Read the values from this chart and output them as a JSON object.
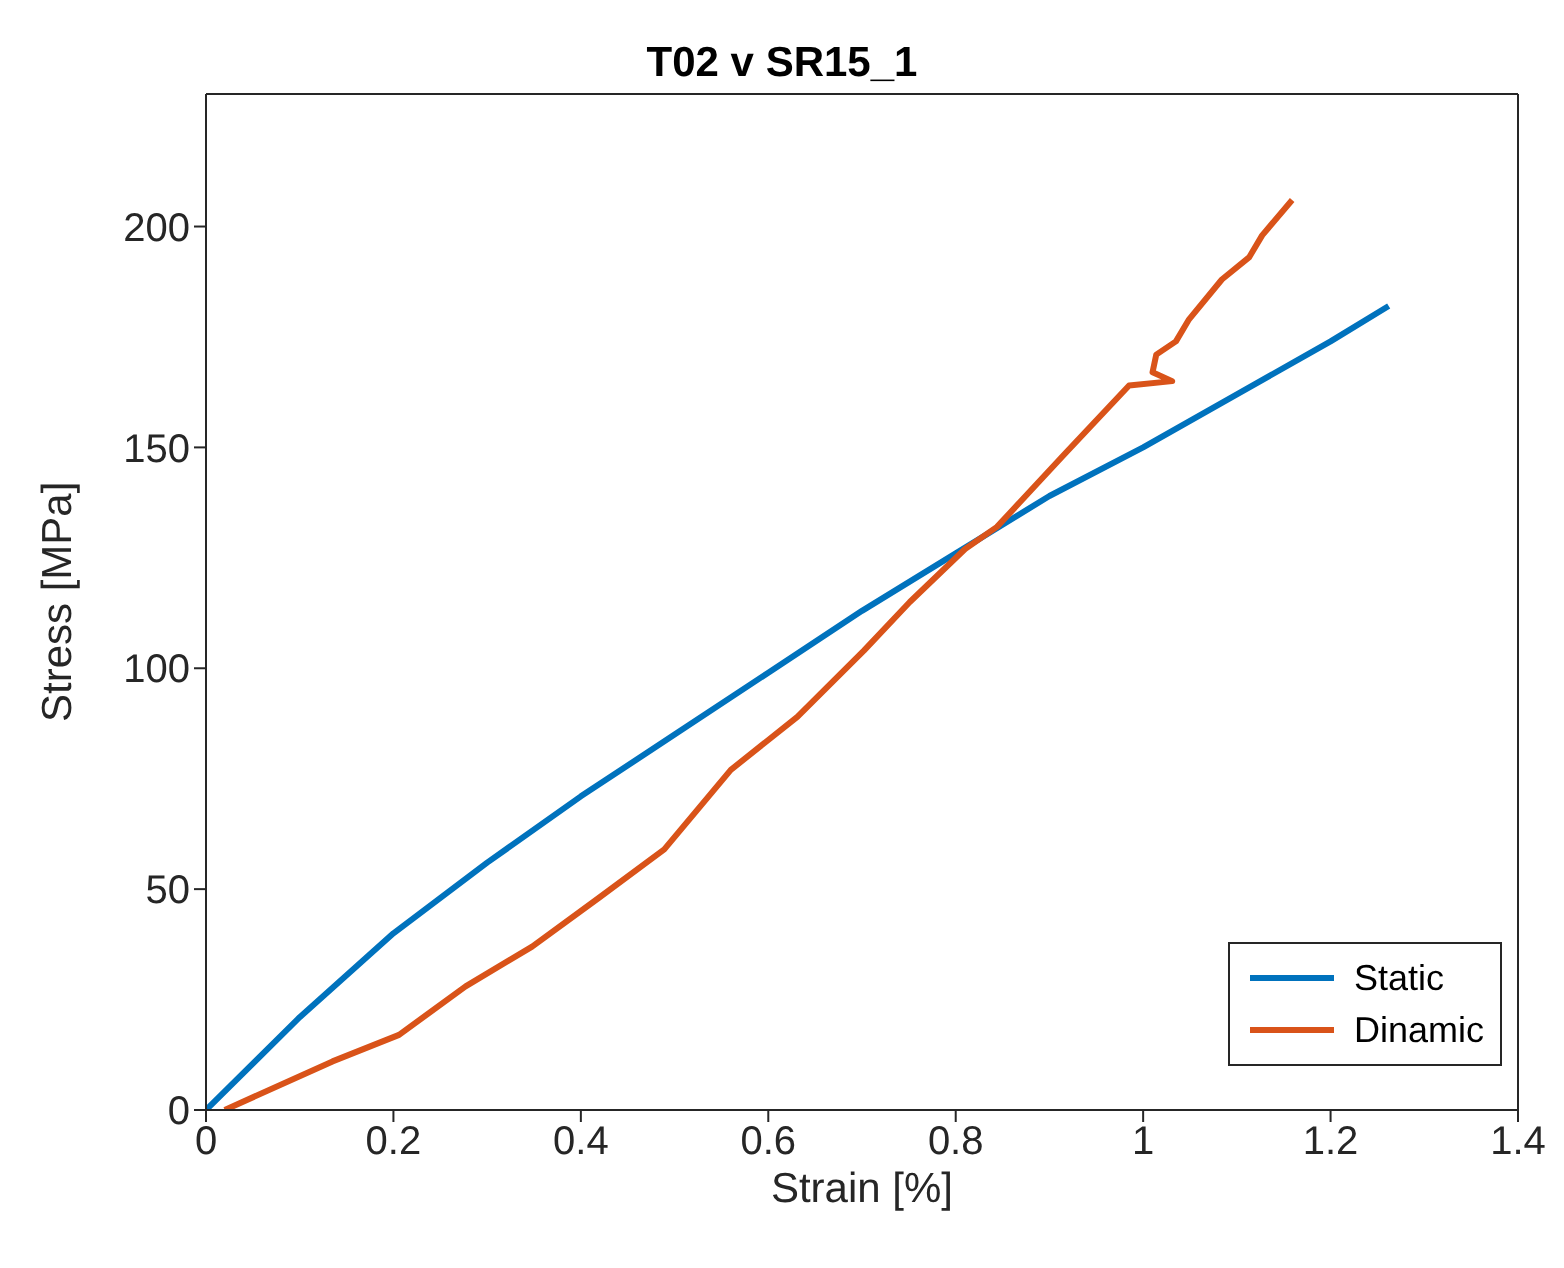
{
  "chart_data": {
    "type": "line",
    "title": "T02 v SR15_1",
    "xlabel": "Strain [%]",
    "ylabel": "Stress [MPa]",
    "xlim": [
      0,
      1.4
    ],
    "xticks": [
      0,
      0.2,
      0.4,
      0.6,
      0.8,
      1,
      1.2,
      1.4
    ],
    "ylim": [
      0,
      230
    ],
    "yticks": [
      0,
      50,
      100,
      150,
      200
    ],
    "grid": false,
    "legend": "bottom right",
    "marker": "none",
    "line_style": "solid",
    "series": [
      {
        "name": "Static",
        "color": "#0072bd",
        "x": [
          0,
          0.1,
          0.2,
          0.3,
          0.4,
          0.5,
          0.6,
          0.7,
          0.8,
          0.9,
          1.0,
          1.1,
          1.2,
          1.262
        ],
        "values": [
          0,
          21,
          40,
          56,
          71,
          85,
          99,
          113,
          126,
          139,
          150,
          162,
          174,
          182
        ]
      },
      {
        "name": "Dinamic",
        "color": "#d95319",
        "x": [
          0.02,
          0.135,
          0.206,
          0.277,
          0.348,
          0.419,
          0.489,
          0.56,
          0.631,
          0.702,
          0.751,
          0.81,
          0.844,
          0.914,
          0.985,
          1.031,
          1.01,
          1.014,
          1.035,
          1.049,
          1.084,
          1.113,
          1.127,
          1.159
        ],
        "values": [
          0,
          11,
          17,
          28,
          37,
          48,
          59,
          77,
          89,
          104,
          115,
          127,
          132,
          148,
          164,
          165,
          167,
          171,
          174,
          179,
          188,
          193,
          198,
          206
        ]
      }
    ]
  }
}
